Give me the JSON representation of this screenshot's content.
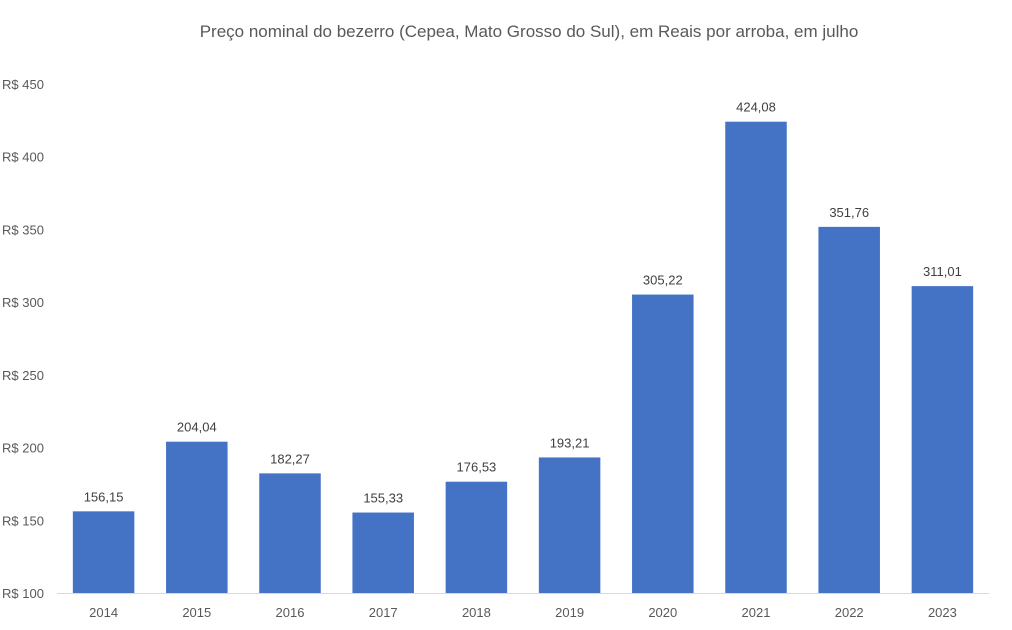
{
  "chart_data": {
    "type": "bar",
    "title": "Preço nominal do bezerro (Cepea, Mato Grosso do Sul), em Reais por arroba, em julho",
    "xlabel": "",
    "ylabel": "",
    "categories": [
      "2014",
      "2015",
      "2016",
      "2017",
      "2018",
      "2019",
      "2020",
      "2021",
      "2022",
      "2023"
    ],
    "values": [
      156.15,
      204.04,
      182.27,
      155.33,
      176.53,
      193.21,
      305.22,
      424.08,
      351.76,
      311.01
    ],
    "data_labels": [
      "156,15",
      "204,04",
      "182,27",
      "155,33",
      "176,53",
      "193,21",
      "305,22",
      "424,08",
      "351,76",
      "311,01"
    ],
    "ylim": [
      100,
      450
    ],
    "y_ticks": [
      100,
      150,
      200,
      250,
      300,
      350,
      400,
      450
    ],
    "y_tick_labels": [
      "R$ 100",
      "R$ 150",
      "R$ 200",
      "R$ 250",
      "R$ 300",
      "R$ 350",
      "R$ 400",
      "R$ 450"
    ],
    "grid": false,
    "legend": "none",
    "bar_color": "#4472c4",
    "axis_color": "#d9d9d9"
  }
}
